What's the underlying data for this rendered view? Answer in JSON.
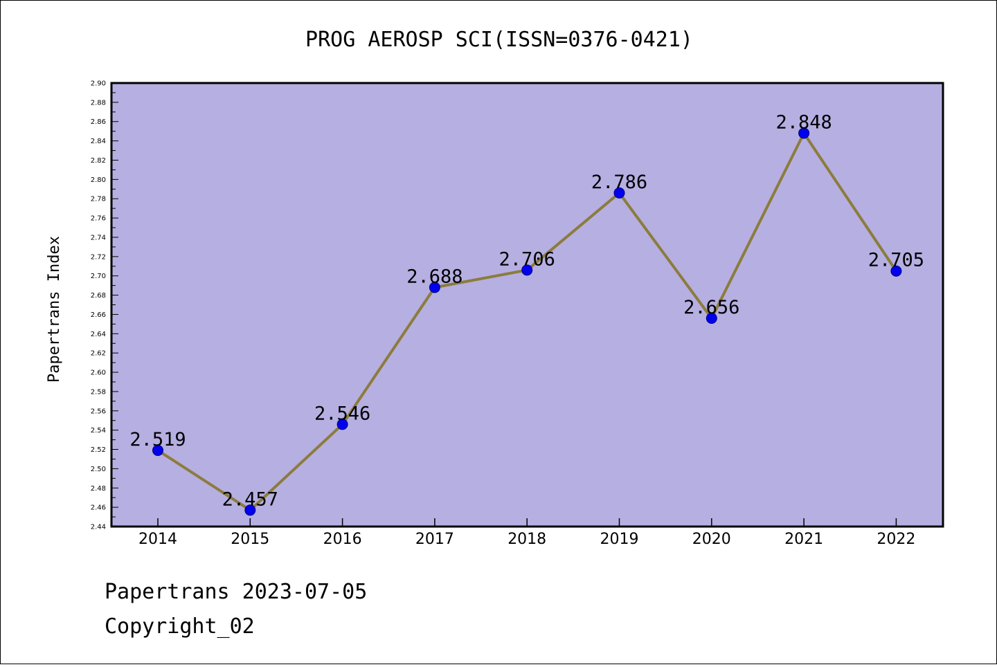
{
  "chart_data": {
    "type": "line",
    "title": "PROG AEROSP SCI(ISSN=0376-0421)",
    "ylabel": "Papertrans Index",
    "xlabel": "",
    "categories": [
      "2014",
      "2015",
      "2016",
      "2017",
      "2018",
      "2019",
      "2020",
      "2021",
      "2022"
    ],
    "values": [
      2.519,
      2.457,
      2.546,
      2.688,
      2.706,
      2.786,
      2.656,
      2.848,
      2.705
    ],
    "data_labels": [
      "2.519",
      "2.457",
      "2.546",
      "2.688",
      "2.706",
      "2.786",
      "2.656",
      "2.848",
      "2.705"
    ],
    "ylim": [
      2.44,
      2.9
    ],
    "yticks": [
      "2.44",
      "2.46",
      "2.48",
      "2.50",
      "2.52",
      "2.54",
      "2.56",
      "2.58",
      "2.60",
      "2.62",
      "2.64",
      "2.66",
      "2.68",
      "2.70",
      "2.72",
      "2.74",
      "2.76",
      "2.78",
      "2.80",
      "2.82",
      "2.84",
      "2.86",
      "2.88",
      "2.90"
    ],
    "grid": false,
    "legend": "none",
    "colors": {
      "plot_background": "#b5afe2",
      "line": "#8c7c3c",
      "marker": "#0000ee",
      "marker_edge": "#00007a"
    }
  },
  "footer": {
    "line1": "Papertrans 2023-07-05",
    "line2": "Copyright_02"
  }
}
